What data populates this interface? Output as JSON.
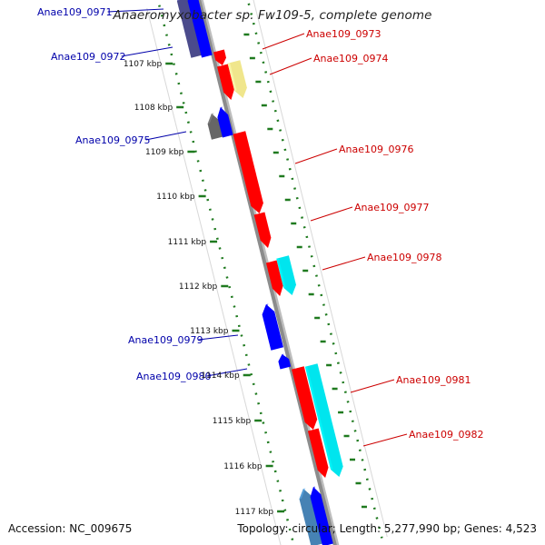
{
  "title": "Anaeromyxobacter sp. Fw109-5, complete genome",
  "footer": {
    "accession": "Accession: NC_009675",
    "topology": "Topology: circular; Length: 5,277,990 bp; Genes: 4,523"
  },
  "colors": {
    "forward_red": "#ff0000",
    "cyan": "#00e5ee",
    "tan": "#f0e68c",
    "reverse_blue": "#0000ff",
    "dark_blue": "#4b4b8c",
    "gray": "#666666",
    "steel_blue": "#4682b4",
    "backbone": "#8c8c8c",
    "tick_green": "#1f7a1f",
    "label_red": "#cc0000",
    "label_blue": "#0000aa"
  },
  "ticks": [
    {
      "label": "1107 kbp"
    },
    {
      "label": "1108 kbp"
    },
    {
      "label": "1109 kbp"
    },
    {
      "label": "1110 kbp"
    },
    {
      "label": "1111 kbp"
    },
    {
      "label": "1112 kbp"
    },
    {
      "label": "1113 kbp"
    },
    {
      "label": "1114 kbp"
    },
    {
      "label": "1115 kbp"
    },
    {
      "label": "1116 kbp"
    },
    {
      "label": "1117 kbp"
    }
  ],
  "genes_forward": [
    {
      "name": "Anae109_0973",
      "color": "forward_red"
    },
    {
      "name": "Anae109_0974",
      "color": "forward_red"
    },
    {
      "name": "Anae109_0976",
      "color": "forward_red"
    },
    {
      "name": "Anae109_0977",
      "color": "forward_red"
    },
    {
      "name": "Anae109_0978",
      "color": "forward_red"
    },
    {
      "name": "Anae109_0981",
      "color": "forward_red"
    },
    {
      "name": "Anae109_0982",
      "color": "forward_red"
    }
  ],
  "genes_reverse": [
    {
      "name": "Anae109_0971",
      "color": "reverse_blue"
    },
    {
      "name": "Anae109_0972",
      "color": "reverse_blue"
    },
    {
      "name": "Anae109_0975",
      "color": "reverse_blue"
    },
    {
      "name": "Anae109_0979",
      "color": "reverse_blue"
    },
    {
      "name": "Anae109_0980",
      "color": "reverse_blue"
    }
  ]
}
